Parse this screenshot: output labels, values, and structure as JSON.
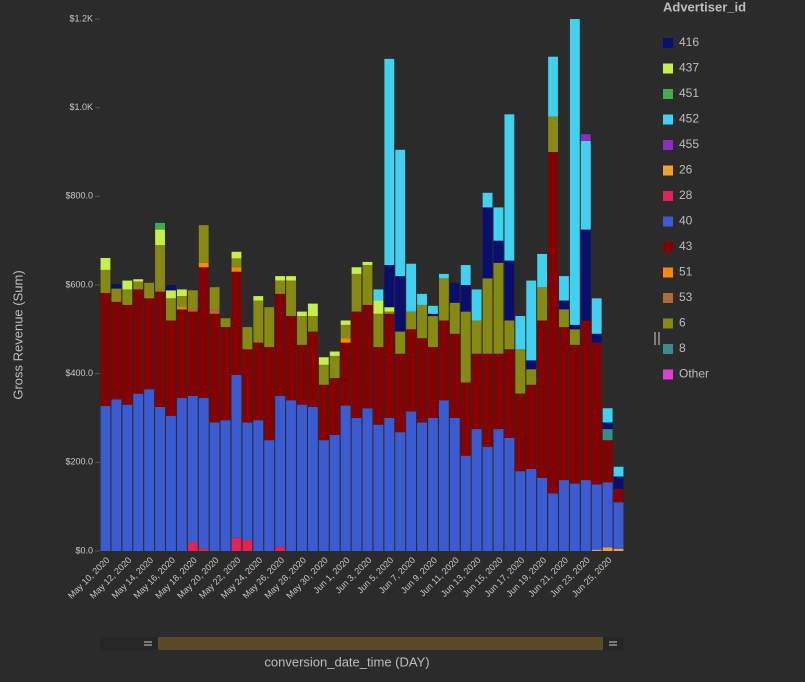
{
  "chart_data": {
    "type": "stacked-bar",
    "y_label": "Gross Revenue (Sum)",
    "x_label": "conversion_date_time (DAY)",
    "legend_title": "Advertiser_id",
    "categories": [
      "May 10, 2020",
      null,
      "May 12, 2020",
      null,
      "May 14, 2020",
      null,
      "May 16, 2020",
      null,
      "May 18, 2020",
      null,
      "May 20, 2020",
      null,
      "May 22, 2020",
      null,
      "May 24, 2020",
      null,
      "May 26, 2020",
      null,
      "May 28, 2020",
      null,
      "May 30, 2020",
      null,
      "Jun 1, 2020",
      null,
      "Jun 3, 2020",
      null,
      "Jun 5, 2020",
      null,
      "Jun 7, 2020",
      null,
      "Jun 9, 2020",
      null,
      "Jun 11, 2020",
      null,
      "Jun 13, 2020",
      null,
      "Jun 15, 2020",
      null,
      "Jun 17, 2020",
      null,
      "Jun 19, 2020",
      null,
      "Jun 21, 2020",
      null,
      "Jun 23, 2020",
      null,
      "Jun 25, 2020",
      null
    ],
    "ylim": [
      0,
      1200
    ],
    "yticks": [
      {
        "value": 0,
        "label": "$0.0"
      },
      {
        "value": 200,
        "label": "$200.0"
      },
      {
        "value": 400,
        "label": "$400.0"
      },
      {
        "value": 600,
        "label": "$600.0"
      },
      {
        "value": 800,
        "label": "$800.0"
      },
      {
        "value": 1000,
        "label": "$1.0K"
      },
      {
        "value": 1200,
        "label": "$1.2K"
      }
    ],
    "series": [
      {
        "name": "416",
        "color": "#0a0f6e",
        "values": [
          0,
          10,
          0,
          0,
          0,
          0,
          12,
          0,
          0,
          0,
          0,
          0,
          0,
          0,
          0,
          0,
          0,
          0,
          0,
          0,
          0,
          0,
          0,
          0,
          0,
          0,
          95,
          125,
          0,
          0,
          5,
          0,
          45,
          60,
          0,
          160,
          50,
          135,
          0,
          20,
          0,
          0,
          20,
          10,
          205,
          20,
          15,
          28
        ]
      },
      {
        "name": "437",
        "color": "#c5f04a",
        "values": [
          27,
          0,
          20,
          5,
          0,
          35,
          18,
          15,
          0,
          0,
          0,
          0,
          15,
          0,
          10,
          0,
          10,
          10,
          10,
          28,
          17,
          10,
          10,
          15,
          7,
          30,
          10,
          0,
          0,
          0,
          0,
          0,
          0,
          0,
          0,
          0,
          0,
          0,
          0,
          0,
          0,
          0,
          0,
          0,
          0,
          0,
          0,
          0
        ]
      },
      {
        "name": "451",
        "color": "#3fae49",
        "values": [
          0,
          0,
          0,
          0,
          0,
          15,
          0,
          0,
          0,
          0,
          0,
          0,
          0,
          0,
          0,
          0,
          0,
          0,
          0,
          0,
          0,
          0,
          0,
          0,
          0,
          0,
          0,
          0,
          0,
          0,
          0,
          0,
          0,
          0,
          0,
          0,
          0,
          0,
          0,
          0,
          0,
          0,
          0,
          0,
          0,
          0,
          0,
          0
        ]
      },
      {
        "name": "452",
        "color": "#40d0f0",
        "values": [
          0,
          0,
          0,
          0,
          0,
          0,
          0,
          0,
          0,
          0,
          0,
          0,
          0,
          0,
          0,
          0,
          0,
          0,
          0,
          0,
          0,
          0,
          0,
          0,
          0,
          25,
          465,
          285,
          108,
          25,
          18,
          10,
          0,
          45,
          70,
          33,
          75,
          330,
          75,
          180,
          75,
          135,
          55,
          690,
          200,
          80,
          32,
          22
        ]
      },
      {
        "name": "455",
        "color": "#8e2bc4",
        "values": [
          0,
          0,
          0,
          0,
          0,
          0,
          0,
          0,
          0,
          0,
          0,
          0,
          0,
          0,
          0,
          0,
          0,
          0,
          0,
          0,
          0,
          0,
          0,
          0,
          0,
          0,
          0,
          0,
          0,
          0,
          0,
          0,
          0,
          0,
          0,
          0,
          0,
          0,
          0,
          0,
          0,
          0,
          0,
          0,
          15,
          0,
          0,
          0
        ]
      },
      {
        "name": "26",
        "color": "#f0a330",
        "values": [
          0,
          0,
          0,
          0,
          0,
          0,
          0,
          0,
          0,
          0,
          0,
          0,
          0,
          0,
          0,
          0,
          0,
          0,
          0,
          0,
          0,
          0,
          0,
          0,
          0,
          0,
          0,
          0,
          0,
          0,
          0,
          0,
          0,
          0,
          0,
          0,
          0,
          0,
          0,
          0,
          0,
          0,
          0,
          0,
          0,
          3,
          8,
          5
        ]
      },
      {
        "name": "28",
        "color": "#e0245a",
        "values": [
          0,
          0,
          0,
          0,
          0,
          0,
          0,
          0,
          20,
          5,
          0,
          0,
          30,
          25,
          0,
          0,
          10,
          0,
          0,
          0,
          0,
          0,
          0,
          0,
          0,
          0,
          0,
          0,
          0,
          0,
          0,
          0,
          0,
          0,
          0,
          0,
          0,
          0,
          0,
          0,
          0,
          0,
          0,
          0,
          0,
          0,
          0,
          0
        ]
      },
      {
        "name": "40",
        "color": "#3b5bd2",
        "values": [
          327,
          342,
          330,
          355,
          365,
          325,
          305,
          345,
          330,
          340,
          290,
          295,
          367,
          265,
          295,
          250,
          340,
          340,
          330,
          325,
          250,
          262,
          328,
          300,
          322,
          285,
          300,
          268,
          315,
          290,
          300,
          340,
          300,
          215,
          275,
          235,
          275,
          255,
          180,
          185,
          165,
          130,
          160,
          152,
          160,
          147,
          147,
          105
        ]
      },
      {
        "name": "43",
        "color": "#850000",
        "values": [
          255,
          220,
          225,
          235,
          205,
          260,
          215,
          200,
          190,
          295,
          245,
          210,
          233,
          165,
          175,
          210,
          230,
          190,
          135,
          170,
          125,
          128,
          142,
          240,
          233,
          175,
          235,
          177,
          185,
          190,
          160,
          180,
          190,
          165,
          170,
          210,
          170,
          200,
          175,
          190,
          355,
          770,
          345,
          313,
          360,
          320,
          95,
          30
        ]
      },
      {
        "name": "51",
        "color": "#ff8800",
        "values": [
          0,
          0,
          0,
          0,
          0,
          0,
          0,
          5,
          0,
          10,
          0,
          0,
          10,
          0,
          0,
          0,
          0,
          0,
          0,
          0,
          0,
          0,
          10,
          0,
          0,
          0,
          0,
          0,
          0,
          0,
          0,
          0,
          0,
          0,
          0,
          0,
          0,
          0,
          0,
          0,
          0,
          0,
          0,
          0,
          0,
          0,
          0,
          0
        ]
      },
      {
        "name": "53",
        "color": "#b06a3a",
        "values": [
          0,
          0,
          0,
          0,
          0,
          0,
          0,
          0,
          8,
          0,
          10,
          0,
          0,
          0,
          0,
          0,
          0,
          0,
          0,
          0,
          0,
          0,
          0,
          0,
          0,
          0,
          0,
          0,
          0,
          0,
          0,
          0,
          0,
          0,
          0,
          0,
          0,
          0,
          0,
          0,
          0,
          0,
          0,
          0,
          0,
          0,
          0,
          0
        ]
      },
      {
        "name": "6",
        "color": "#868a12",
        "values": [
          52,
          30,
          35,
          18,
          35,
          105,
          50,
          25,
          40,
          85,
          50,
          20,
          20,
          50,
          95,
          90,
          30,
          80,
          65,
          35,
          45,
          50,
          30,
          85,
          90,
          75,
          5,
          50,
          40,
          75,
          70,
          95,
          70,
          160,
          75,
          170,
          205,
          65,
          100,
          35,
          75,
          80,
          40,
          35,
          0,
          0,
          0,
          0
        ]
      },
      {
        "name": "8",
        "color": "#3a8c8c",
        "values": [
          0,
          0,
          0,
          0,
          0,
          0,
          0,
          0,
          0,
          0,
          0,
          0,
          0,
          0,
          0,
          0,
          0,
          0,
          0,
          0,
          0,
          0,
          0,
          0,
          0,
          0,
          0,
          0,
          0,
          0,
          0,
          0,
          0,
          0,
          0,
          0,
          0,
          0,
          0,
          0,
          0,
          0,
          0,
          0,
          0,
          0,
          25,
          0
        ]
      },
      {
        "name": "Other",
        "color": "#e040d0",
        "values": [
          0,
          0,
          0,
          0,
          0,
          0,
          0,
          0,
          0,
          0,
          0,
          0,
          0,
          0,
          0,
          0,
          0,
          0,
          0,
          0,
          0,
          0,
          0,
          0,
          0,
          0,
          0,
          0,
          0,
          0,
          0,
          0,
          0,
          0,
          0,
          0,
          0,
          0,
          0,
          0,
          0,
          0,
          0,
          0,
          0,
          0,
          0,
          0
        ]
      }
    ]
  }
}
